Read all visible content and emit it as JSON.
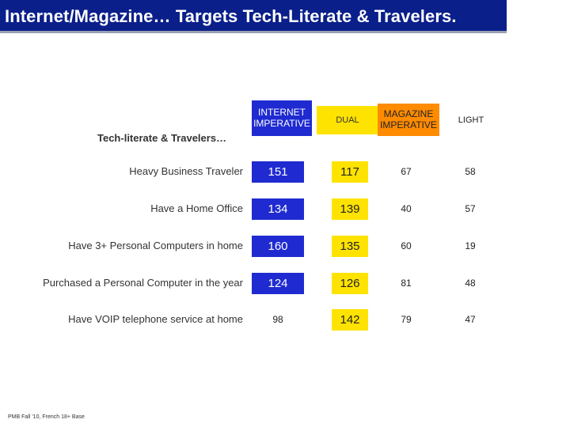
{
  "title": "Internet/Magazine… Targets Tech-Literate & Travelers.",
  "footnote": "PMB Fall '10, French 18+ Base",
  "chart_data": {
    "type": "table",
    "title": "Internet/Magazine… Targets Tech-Literate & Travelers.",
    "section_label": "Tech-literate & Travelers…",
    "columns": [
      {
        "name": "INTERNET IMPERATIVE",
        "color": "#1f2bd0"
      },
      {
        "name": "DUAL",
        "color": "#ffe300"
      },
      {
        "name": "MAGAZINE IMPERATIVE",
        "color": "#ff8b00"
      },
      {
        "name": "LIGHT",
        "color": "#ffffff"
      }
    ],
    "rows": [
      {
        "label": "Heavy Business Traveler",
        "values": [
          151,
          117,
          67,
          58
        ],
        "highlight": [
          true,
          true,
          false,
          false
        ]
      },
      {
        "label": "Have a Home Office",
        "values": [
          134,
          139,
          40,
          57
        ],
        "highlight": [
          true,
          true,
          false,
          false
        ]
      },
      {
        "label": "Have 3+ Personal Computers in home",
        "values": [
          160,
          135,
          60,
          19
        ],
        "highlight": [
          true,
          true,
          false,
          false
        ]
      },
      {
        "label": "Purchased a Personal Computer in the year",
        "values": [
          124,
          126,
          81,
          48
        ],
        "highlight": [
          true,
          true,
          false,
          false
        ]
      },
      {
        "label": "Have VOIP telephone service at home",
        "values": [
          98,
          142,
          79,
          47
        ],
        "highlight": [
          false,
          true,
          false,
          false
        ]
      }
    ]
  }
}
